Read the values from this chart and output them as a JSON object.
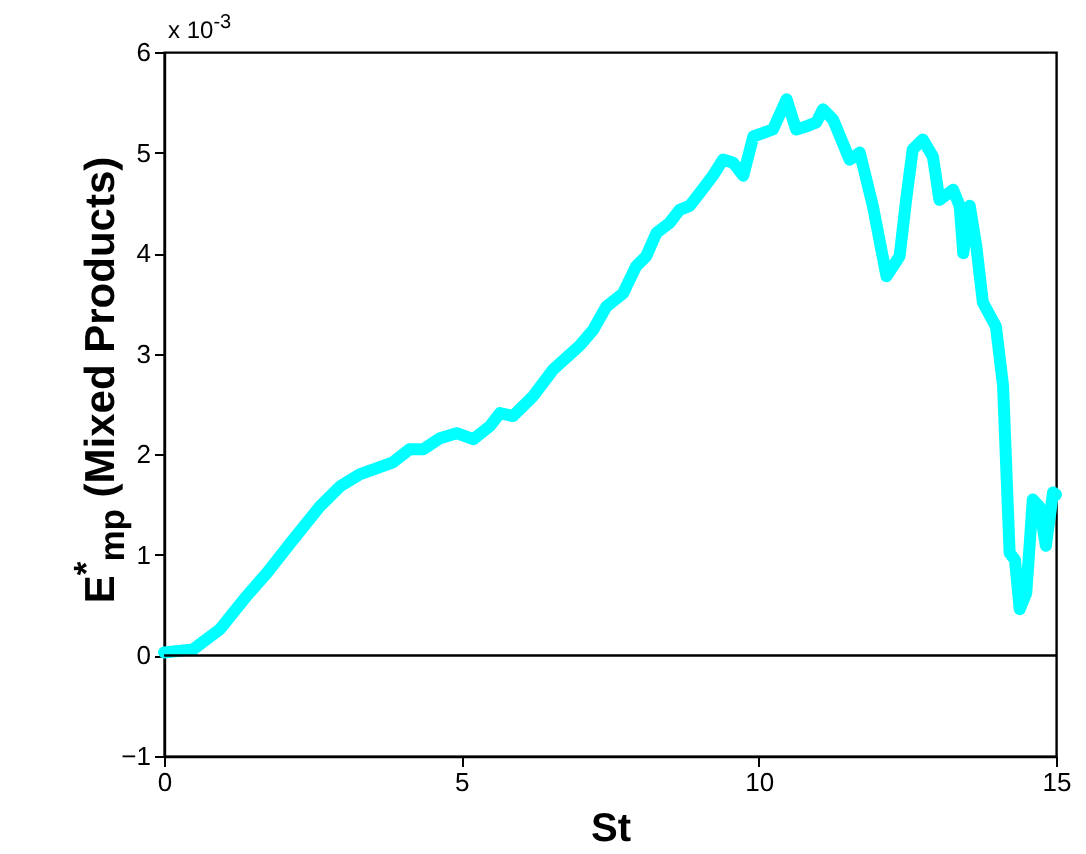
{
  "chart_data": {
    "type": "line",
    "xlabel": "St",
    "ylabel": "E$^{*}$$_{mp}$ (Mixed Products)",
    "annotations": [
      "x 10$^{-3}$"
    ],
    "xlim": [
      0,
      15
    ],
    "xticks": [
      0,
      5,
      10,
      15
    ],
    "ylim": [
      -1,
      6
    ],
    "yticks": [
      -1,
      0,
      1,
      2,
      3,
      4,
      5,
      6
    ],
    "grid": false,
    "line_style": "solid",
    "ref_lines": [
      {
        "axis": "y",
        "value": 0,
        "color": "#000000"
      }
    ],
    "x": [
      0,
      0.49,
      0.94,
      1.39,
      1.73,
      2.17,
      2.62,
      2.96,
      3.29,
      3.85,
      4.13,
      4.36,
      4.64,
      4.92,
      5.2,
      5.48,
      5.65,
      5.87,
      6.21,
      6.54,
      6.99,
      7.22,
      7.44,
      7.72,
      7.94,
      8.11,
      8.28,
      8.5,
      8.67,
      8.84,
      9.01,
      9.23,
      9.4,
      9.57,
      9.74,
      9.91,
      10.24,
      10.47,
      10.63,
      10.8,
      10.97,
      11.08,
      11.25,
      11.53,
      11.7,
      11.92,
      12.15,
      12.37,
      12.48,
      12.59,
      12.76,
      12.93,
      13.04,
      13.27,
      13.38,
      13.44,
      13.55,
      13.66,
      13.77,
      13.99,
      14.11,
      14.22,
      14.31,
      14.39,
      14.5,
      14.61,
      14.72,
      14.83,
      14.95,
      15
    ],
    "series": [
      {
        "color": "#00ffff",
        "values": [
          0.03,
          0.06,
          0.26,
          0.59,
          0.82,
          1.15,
          1.48,
          1.68,
          1.8,
          1.92,
          2.05,
          2.05,
          2.16,
          2.21,
          2.15,
          2.28,
          2.41,
          2.38,
          2.58,
          2.84,
          3.08,
          3.24,
          3.47,
          3.6,
          3.87,
          3.97,
          4.2,
          4.3,
          4.43,
          4.47,
          4.6,
          4.77,
          4.93,
          4.9,
          4.77,
          5.16,
          5.23,
          5.53,
          5.23,
          5.26,
          5.3,
          5.43,
          5.33,
          4.93,
          5.0,
          4.47,
          3.77,
          3.97,
          4.53,
          5.03,
          5.13,
          4.96,
          4.53,
          4.63,
          4.47,
          4.0,
          4.47,
          4.07,
          3.51,
          3.27,
          2.68,
          1.02,
          0.95,
          0.46,
          0.62,
          1.55,
          1.48,
          1.09,
          1.62,
          1.6
        ]
      }
    ]
  }
}
